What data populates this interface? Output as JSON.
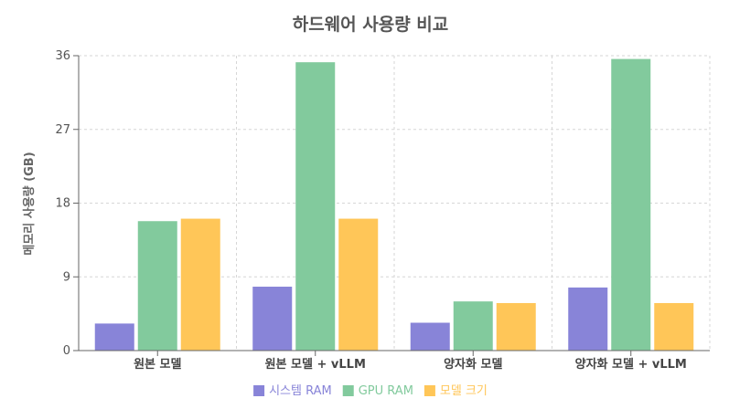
{
  "chart_data": {
    "type": "bar",
    "title": "하드웨어 사용량 비교",
    "ylabel": "메모리 사용량 (GB)",
    "xlabel": "",
    "ylim": [
      0,
      36
    ],
    "yticks": [
      0,
      9,
      18,
      27,
      36
    ],
    "grid": true,
    "legend_position": "bottom",
    "categories": [
      "원본 모델",
      "원본 모델 + vLLM",
      "양자화 모델",
      "양자화 모델 + vLLM"
    ],
    "series": [
      {
        "name": "시스템 RAM",
        "color": "#8884d8",
        "values": [
          3.3,
          7.8,
          3.4,
          7.7
        ]
      },
      {
        "name": "GPU RAM",
        "color": "#82ca9d",
        "values": [
          15.8,
          35.2,
          6.0,
          35.6
        ]
      },
      {
        "name": "모델 크기",
        "color": "#ffc658",
        "values": [
          16.1,
          16.1,
          5.8,
          5.8
        ]
      }
    ]
  }
}
